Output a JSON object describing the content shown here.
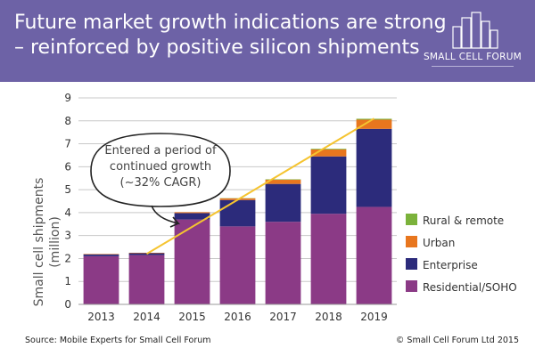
{
  "header": {
    "title_line1": "Future market growth indications are strong",
    "title_line2": "– reinforced by positive silicon shipments",
    "logo_text": "SMALL CELL FORUM",
    "background_color": "#6d62a6"
  },
  "chart_data": {
    "type": "bar",
    "stacked": true,
    "categories": [
      "2013",
      "2014",
      "2015",
      "2016",
      "2017",
      "2018",
      "2019"
    ],
    "ylabel_line1": "Small cell shipments",
    "ylabel_line2": "(million)",
    "ylim": [
      0,
      9
    ],
    "yticks": [
      "0",
      "1",
      "2",
      "3",
      "4",
      "5",
      "6",
      "7",
      "8",
      "9"
    ],
    "grid": true,
    "legend_position": "right",
    "series": [
      {
        "name": "Residential/SOHO",
        "color": "#8b3a86",
        "values": [
          2.1,
          2.15,
          3.7,
          3.4,
          3.6,
          3.95,
          4.25
        ]
      },
      {
        "name": "Enterprise",
        "color": "#2c2b7b",
        "values": [
          0.08,
          0.08,
          0.28,
          1.15,
          1.65,
          2.5,
          3.4
        ]
      },
      {
        "name": "Urban",
        "color": "#e8761e",
        "values": [
          0.02,
          0.02,
          0.04,
          0.07,
          0.18,
          0.3,
          0.4
        ]
      },
      {
        "name": "Rural & remote",
        "color": "#7bb23b",
        "values": [
          0.0,
          0.0,
          0.0,
          0.01,
          0.02,
          0.03,
          0.04
        ]
      }
    ],
    "trendline": {
      "color": "#f5c430",
      "from": {
        "x": "2014",
        "y": 2.2
      },
      "to": {
        "x": "2019",
        "y": 8.1
      }
    },
    "annotation": {
      "lines": [
        "Entered a period of",
        "continued growth",
        "(~32% CAGR)"
      ]
    }
  },
  "footer": {
    "source": "Source: Mobile Experts for Small Cell Forum",
    "copyright": "© Small Cell Forum Ltd 2015"
  }
}
